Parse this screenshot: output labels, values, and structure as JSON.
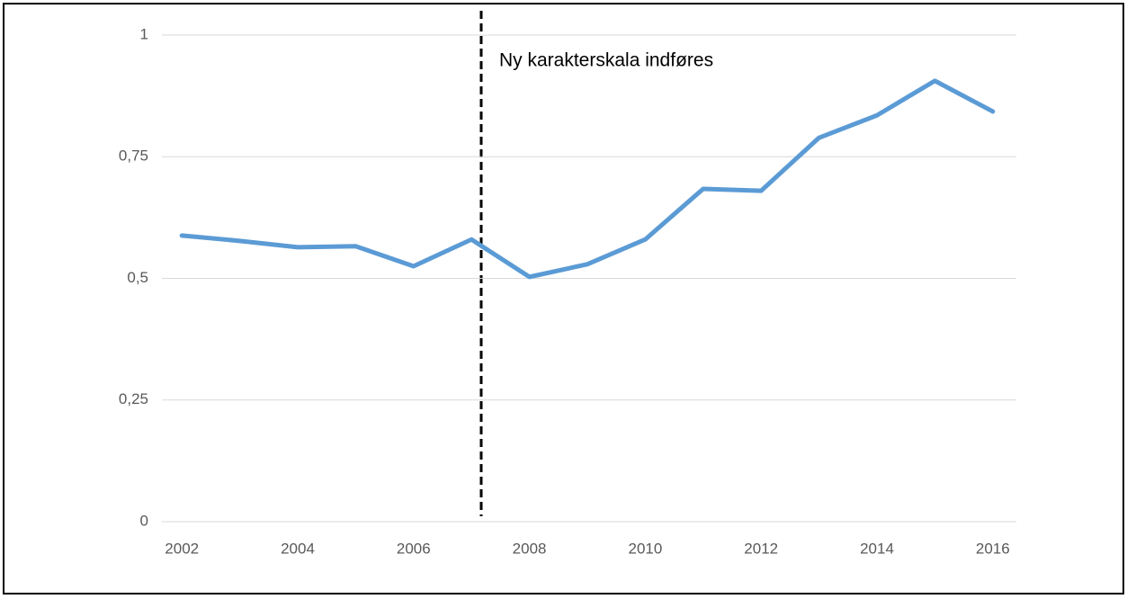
{
  "chart_data": {
    "type": "line",
    "annotation": "Ny karakterskala indføres",
    "categories": [
      "2002",
      null,
      "2004",
      null,
      "2006",
      null,
      "2008",
      null,
      "2010",
      null,
      "2012",
      null,
      "2014",
      null,
      "2016"
    ],
    "values": [
      0.588,
      0.577,
      0.564,
      0.566,
      0.525,
      0.58,
      0.503,
      0.529,
      0.58,
      0.684,
      0.68,
      0.789,
      0.835,
      0.906,
      0.843
    ],
    "color": "#5b9bd5",
    "ylim": [
      0,
      1
    ],
    "yticks": [
      0,
      {
        "value": 0.25,
        "label": "0,25"
      },
      {
        "value": 0.5,
        "label": "0,5"
      },
      {
        "value": 0.75,
        "label": "0,75"
      },
      1
    ],
    "grid": true
  }
}
